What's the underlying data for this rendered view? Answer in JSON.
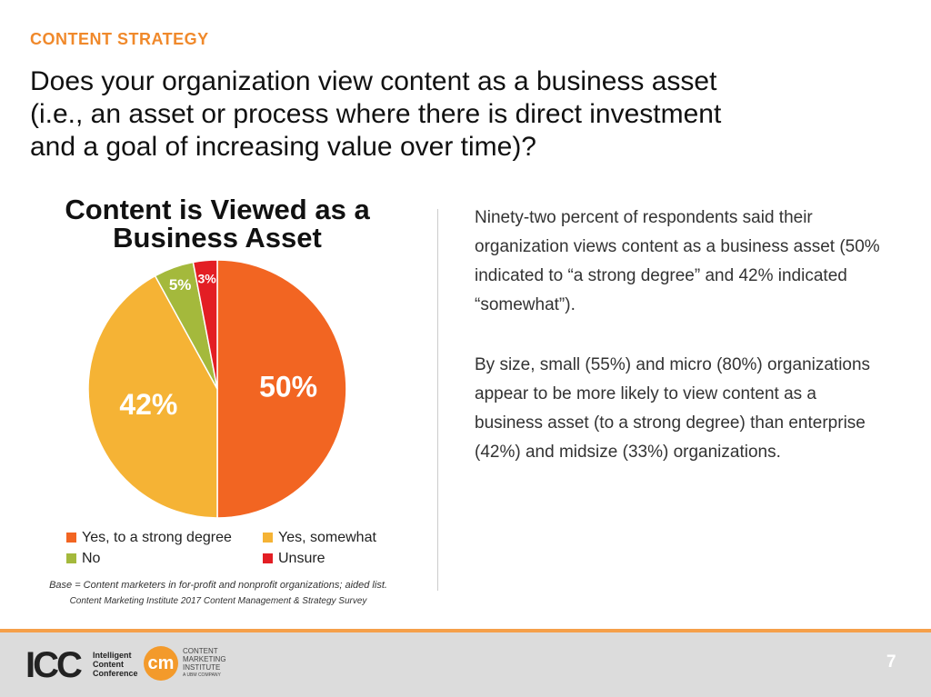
{
  "header": {
    "section": "CONTENT STRATEGY",
    "question": [
      "Does your organization view content as a business asset",
      "(i.e., an asset or process where there is direct investment",
      "and a goal of increasing value over time)?"
    ]
  },
  "chart_data": {
    "type": "pie",
    "title": "Content is Viewed as a Business Asset",
    "categories": [
      "Yes, to a strong degree",
      "Yes, somewhat",
      "No",
      "Unsure"
    ],
    "values": [
      50,
      42,
      5,
      3
    ],
    "value_labels": [
      "50%",
      "42%",
      "5%",
      "3%"
    ],
    "colors": [
      "#f26522",
      "#f5b335",
      "#a4b93c",
      "#e31e24"
    ],
    "notes": [
      "Base = Content marketers in for-profit and nonprofit organizations; aided list.",
      "Content Marketing Institute 2017 Content Management & Strategy Survey"
    ]
  },
  "body": [
    "Ninety-two percent of respondents said their organization views content as a business asset (50% indicated to “a strong degree” and 42% indicated “somewhat”).",
    "By size, small (55%) and micro (80%) organizations appear to be more likely to view content as a business asset (to a strong degree) than enterprise (42%) and midsize (33%) organizations."
  ],
  "footer": {
    "icc": "ICC",
    "icc_name": [
      "Intelligent",
      "Content",
      "Conference"
    ],
    "cmi_mark": "cm",
    "cmi_name": [
      "CONTENT",
      "MARKETING",
      "INSTITUTE"
    ],
    "cmi_sub": "A UBM COMPANY",
    "page": "7"
  }
}
